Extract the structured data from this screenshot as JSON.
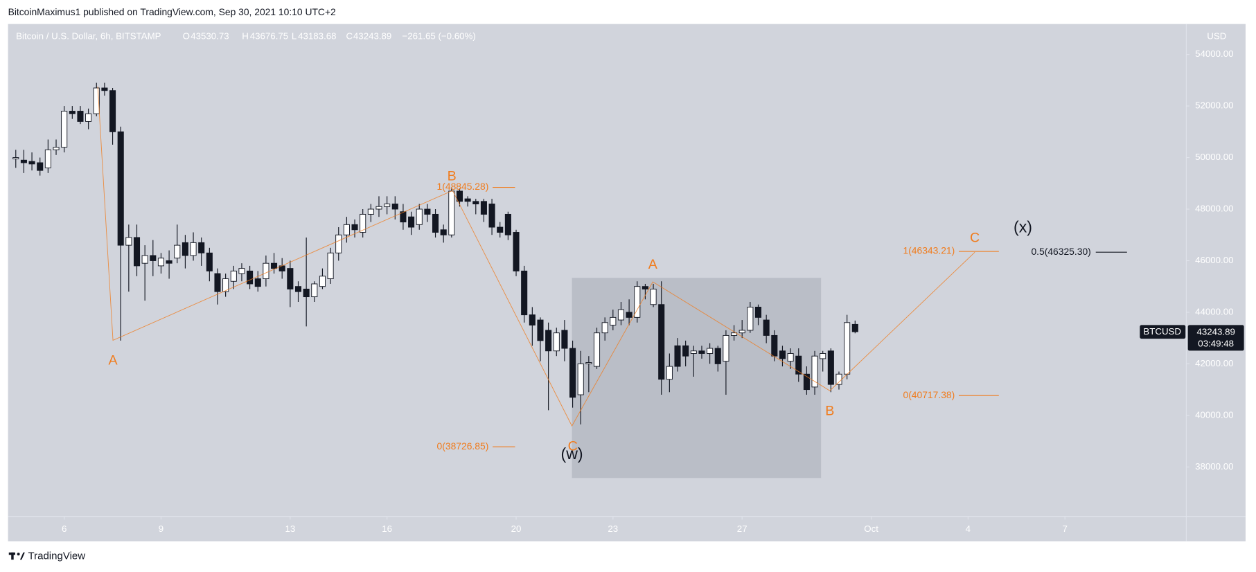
{
  "header": {
    "published": "BitcoinMaximus1 published on TradingView.com, Sep 30, 2021 10:10 UTC+2",
    "legend_title": "Bitcoin / U.S. Dollar, 6h, BITSTAMP",
    "o_key": "O",
    "h_key": "H",
    "l_key": "L",
    "c_key": "C",
    "change": "−261.65 (−0.60%)",
    "currency": "USD"
  },
  "last_price": {
    "symbol": "BTCUSD",
    "countdown": "03:49:48"
  },
  "annotations": {
    "a1": "A",
    "b1": "B",
    "fib1_top": "1(48845.28)",
    "fib1_bottom": "0(38726.85)",
    "c1": "C",
    "w": "(w)",
    "a2": "A",
    "b2": "B",
    "c2": "C",
    "x": "(x)",
    "fib2_top": "1(46343.21)",
    "fib2_bottom": "0(40717.38)",
    "fib_half": "0.5(46325.30)"
  },
  "footer": {
    "brand": "TradingView"
  },
  "chart_data": {
    "type": "candlestick",
    "up_color": "#ffffff",
    "down_color": "#131722",
    "x": [
      4.5,
      4.75,
      5,
      5.25,
      5.5,
      5.75,
      6,
      6.25,
      6.5,
      6.75,
      7,
      7.25,
      7.5,
      7.75,
      8,
      8.25,
      8.5,
      8.75,
      9,
      9.25,
      9.5,
      9.75,
      10,
      10.25,
      10.5,
      10.75,
      11,
      11.25,
      11.5,
      11.75,
      12,
      12.25,
      12.5,
      12.75,
      13,
      13.25,
      13.5,
      13.75,
      14,
      14.25,
      14.5,
      14.75,
      15,
      15.25,
      15.5,
      15.75,
      16,
      16.25,
      16.5,
      16.75,
      17,
      17.25,
      17.5,
      17.75,
      18,
      18.25,
      18.5,
      18.75,
      19,
      19.25,
      19.5,
      19.75,
      20,
      20.25,
      20.5,
      20.75,
      21,
      21.25,
      21.5,
      21.75,
      22,
      22.25,
      22.5,
      22.75,
      23,
      23.25,
      23.5,
      23.75,
      24,
      24.25,
      24.5,
      24.75,
      25,
      25.25,
      25.5,
      25.75,
      26,
      26.25,
      26.5,
      26.75,
      27,
      27.25,
      27.5,
      27.75,
      28,
      28.25,
      28.5,
      28.75,
      29,
      29.25,
      29.5,
      29.75,
      30,
      30.25,
      30.5
    ],
    "open": [
      49950,
      49900,
      49850,
      49800,
      49600,
      50300,
      50400,
      51800,
      51800,
      51400,
      51700,
      52700,
      52600,
      51000,
      46600,
      46900,
      45900,
      46200,
      45800,
      46000,
      46100,
      46700,
      46200,
      46700,
      46300,
      45500,
      44800,
      45200,
      45500,
      45600,
      45300,
      45300,
      45900,
      45800,
      45700,
      45000,
      44900,
      44600,
      45000,
      45300,
      46300,
      47000,
      47400,
      47100,
      47800,
      48000,
      48100,
      48200,
      47900,
      47700,
      47400,
      48000,
      47800,
      47200,
      47000,
      48700,
      48400,
      48300,
      48300,
      48200,
      47300,
      47800,
      47100,
      45600,
      43900,
      43700,
      43300,
      42500,
      43300,
      42600,
      40800,
      42000,
      41900,
      43200,
      43500,
      43700,
      44000,
      43800,
      45000,
      44300,
      44300,
      41400,
      42700,
      42700,
      42400,
      42500,
      42400,
      42600,
      42100,
      43100,
      43200,
      43300,
      44200,
      43700,
      43100,
      42500,
      42100,
      42300,
      41600,
      41100,
      42200,
      42500,
      41200,
      41600,
      43530.73
    ],
    "high": [
      50300,
      50300,
      50200,
      50000,
      50700,
      50700,
      52000,
      52000,
      52000,
      51900,
      52900,
      52900,
      52700,
      51200,
      47400,
      47400,
      46600,
      46800,
      46300,
      46400,
      47400,
      47000,
      47100,
      46900,
      46500,
      45700,
      45500,
      45800,
      45900,
      45800,
      45600,
      46200,
      46300,
      46100,
      46000,
      45200,
      46900,
      45200,
      45700,
      46500,
      47300,
      47700,
      47600,
      48000,
      48200,
      48500,
      48500,
      48500,
      48200,
      47900,
      48200,
      48200,
      48000,
      47400,
      48850,
      48800,
      48500,
      48400,
      48400,
      48400,
      47500,
      47900,
      47200,
      45800,
      44200,
      43800,
      43600,
      43400,
      43700,
      42900,
      42500,
      42300,
      43400,
      43800,
      44100,
      44400,
      44500,
      45200,
      45100,
      45100,
      45200,
      42400,
      43000,
      42900,
      42700,
      42700,
      42800,
      42700,
      43300,
      43500,
      43700,
      44400,
      44300,
      43900,
      43300,
      42700,
      42600,
      42600,
      41900,
      42500,
      42500,
      42600,
      41700,
      43900,
      43676.75
    ],
    "low": [
      49600,
      49400,
      49500,
      49300,
      49400,
      50100,
      50200,
      51500,
      51300,
      51100,
      51600,
      52400,
      50500,
      42900,
      44800,
      45400,
      44450,
      45400,
      45500,
      45300,
      45900,
      45700,
      46000,
      45800,
      45200,
      44300,
      44600,
      44900,
      45200,
      44900,
      44800,
      45000,
      45500,
      45300,
      44200,
      44400,
      43450,
      44400,
      44900,
      45100,
      46000,
      46700,
      46900,
      46900,
      47500,
      47700,
      47800,
      47600,
      47200,
      47000,
      47200,
      47500,
      46900,
      46700,
      46900,
      48100,
      48100,
      47800,
      47500,
      47000,
      46900,
      46800,
      45400,
      43600,
      42700,
      42100,
      40200,
      42300,
      42100,
      40300,
      39650,
      40900,
      41800,
      42900,
      43300,
      43500,
      43500,
      43600,
      44500,
      44200,
      40800,
      40900,
      41700,
      41900,
      41500,
      42200,
      42000,
      41700,
      40800,
      42900,
      43000,
      43200,
      43500,
      42800,
      42100,
      41900,
      41800,
      41300,
      40800,
      40800,
      41700,
      40900,
      41000,
      41400,
      43183.68
    ],
    "close": [
      50000,
      49800,
      49750,
      49500,
      50300,
      50400,
      51800,
      51700,
      51400,
      51700,
      52700,
      52600,
      51000,
      46600,
      46900,
      45800,
      46200,
      46000,
      46100,
      45900,
      46600,
      46200,
      46700,
      46300,
      45600,
      44800,
      45300,
      45600,
      45700,
      45100,
      45000,
      45900,
      45700,
      45600,
      44900,
      44800,
      44600,
      45100,
      45400,
      46300,
      47000,
      47400,
      47200,
      47800,
      48000,
      48100,
      48200,
      48000,
      47500,
      47300,
      48000,
      47800,
      47100,
      47000,
      48700,
      48300,
      48300,
      48200,
      47800,
      47300,
      47100,
      47000,
      45600,
      43900,
      43500,
      42900,
      42500,
      43200,
      42600,
      40700,
      42000,
      42050,
      43200,
      43600,
      43800,
      44100,
      43800,
      45000,
      44900,
      44900,
      41400,
      41900,
      41900,
      42300,
      42500,
      42400,
      42600,
      42000,
      43100,
      43200,
      43300,
      44200,
      43800,
      43100,
      42300,
      42200,
      42400,
      41600,
      41000,
      42300,
      42400,
      41200,
      41600,
      43600,
      43243.89
    ],
    "xlim": [
      4.26,
      40.76
    ],
    "ylim": [
      36080,
      55180
    ],
    "xticks": [
      6,
      9,
      13,
      16,
      20,
      23,
      27,
      {
        "value": 31,
        "label": "Oct"
      },
      {
        "value": 34,
        "label": "4"
      },
      {
        "value": 37,
        "label": "7"
      }
    ],
    "yticks": [
      {
        "value": 38000,
        "label": "38000.00"
      },
      {
        "value": 40000,
        "label": "40000.00"
      },
      {
        "value": 42000,
        "label": "42000.00"
      },
      {
        "value": 44000,
        "label": "44000.00"
      },
      {
        "value": 46000,
        "label": "46000.00"
      },
      {
        "value": 48000,
        "label": "48000.00"
      },
      {
        "value": 50000,
        "label": "50000.00"
      },
      {
        "value": 52000,
        "label": "52000.00"
      },
      {
        "value": 54000,
        "label": "54000.00"
      }
    ],
    "grid": false
  }
}
